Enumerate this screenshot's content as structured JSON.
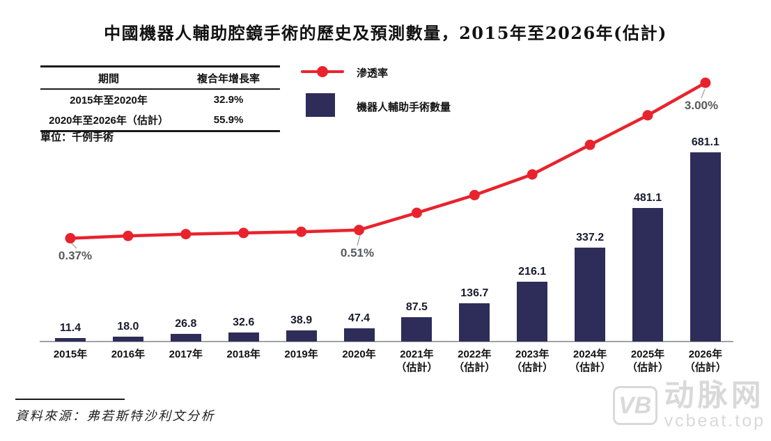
{
  "title": "中國機器人輔助腔鏡手術的歷史及預測數量，2015年至2026年(估計)",
  "cagr_table": {
    "headers": [
      "期間",
      "複合年增長率"
    ],
    "rows": [
      [
        "2015年至2020年",
        "32.9%"
      ],
      [
        "2020年至2026年（估計）",
        "55.9%"
      ]
    ]
  },
  "unit_note": "單位：千例手術",
  "legend": [
    {
      "label": "滲透率",
      "type": "line",
      "color": "#e8232d"
    },
    {
      "label": "機器人輔助手術數量",
      "type": "bar",
      "color": "#2e2c59"
    }
  ],
  "chart_data": {
    "type": "bar+line",
    "title": "中國機器人輔助腔鏡手術的歷史及預測數量，2015年至2026年(估計)",
    "unit": "千例手術",
    "categories": [
      {
        "label": "2015年",
        "sublabel": ""
      },
      {
        "label": "2016年",
        "sublabel": ""
      },
      {
        "label": "2017年",
        "sublabel": ""
      },
      {
        "label": "2018年",
        "sublabel": ""
      },
      {
        "label": "2019年",
        "sublabel": ""
      },
      {
        "label": "2020年",
        "sublabel": ""
      },
      {
        "label": "2021年",
        "sublabel": "（估計）"
      },
      {
        "label": "2022年",
        "sublabel": "（估計）"
      },
      {
        "label": "2023年",
        "sublabel": "（估計）"
      },
      {
        "label": "2024年",
        "sublabel": "（估計）"
      },
      {
        "label": "2025年",
        "sublabel": "（估計）"
      },
      {
        "label": "2026年",
        "sublabel": "（估計）"
      }
    ],
    "series": [
      {
        "name": "機器人輔助手術數量",
        "type": "bar",
        "color": "#2e2c59",
        "values": [
          11.4,
          18.0,
          26.8,
          32.6,
          38.9,
          47.4,
          87.5,
          136.7,
          216.1,
          337.2,
          481.1,
          681.1
        ]
      },
      {
        "name": "滲透率",
        "type": "line",
        "color": "#e8232d",
        "values_pct_estimated": [
          0.37,
          0.41,
          0.44,
          0.46,
          0.48,
          0.51,
          0.8,
          1.1,
          1.45,
          1.95,
          2.45,
          3.0
        ],
        "labeled_points": [
          {
            "index": 0,
            "text": "0.37%"
          },
          {
            "index": 5,
            "text": "0.51%"
          },
          {
            "index": 11,
            "text": "3.00%"
          }
        ]
      }
    ],
    "legend_position": "top-left",
    "grid": false,
    "y_axis_visible": false
  },
  "source": "資料來源：弗若斯特沙利文分析",
  "watermark": {
    "logo": "VB",
    "name": "动脉网",
    "site": "vcbeat.top"
  }
}
